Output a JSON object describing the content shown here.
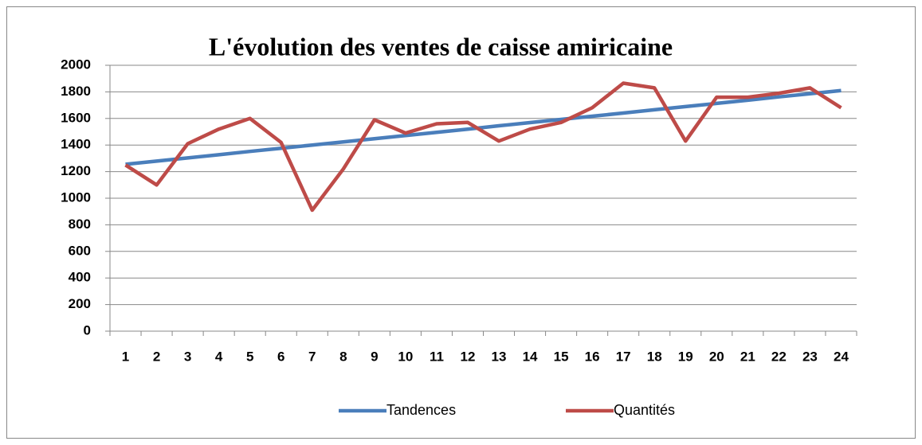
{
  "chart_data": {
    "type": "line",
    "title": "L'évolution des ventes de caisse amiricaine",
    "categories": [
      "1",
      "2",
      "3",
      "4",
      "5",
      "6",
      "7",
      "8",
      "9",
      "10",
      "11",
      "12",
      "13",
      "14",
      "15",
      "16",
      "17",
      "18",
      "19",
      "20",
      "21",
      "22",
      "23",
      "24"
    ],
    "series": [
      {
        "name": "Tandences",
        "color": "#4a7ebb",
        "values": [
          1255,
          1279,
          1303,
          1327,
          1352,
          1376,
          1400,
          1424,
          1448,
          1472,
          1496,
          1520,
          1545,
          1569,
          1593,
          1617,
          1641,
          1665,
          1689,
          1713,
          1737,
          1762,
          1786,
          1810
        ]
      },
      {
        "name": "Quantités",
        "color": "#be4b48",
        "values": [
          1250,
          1100,
          1410,
          1520,
          1600,
          1420,
          910,
          1220,
          1590,
          1490,
          1560,
          1570,
          1430,
          1520,
          1570,
          1680,
          1865,
          1830,
          1430,
          1760,
          1760,
          1790,
          1830,
          1680
        ]
      }
    ],
    "ylim": [
      0,
      2000
    ],
    "yticks": [
      0,
      200,
      400,
      600,
      800,
      1000,
      1200,
      1400,
      1600,
      1800,
      2000
    ],
    "grid": true,
    "legend": "bottom"
  }
}
